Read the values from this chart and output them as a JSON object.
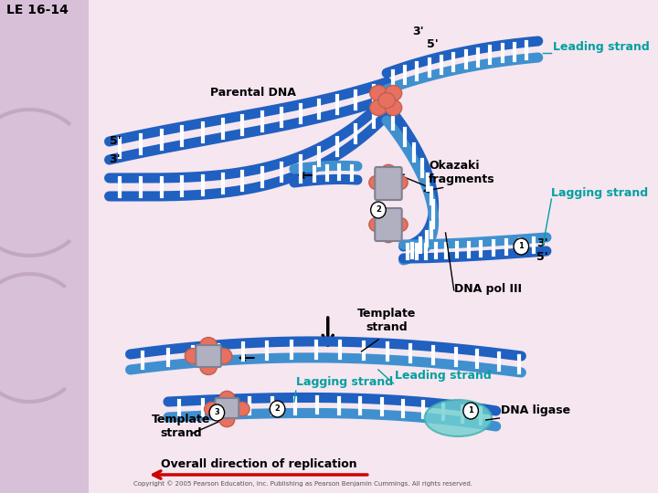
{
  "title": "LE 16-14",
  "bg_color": "#f5e6f0",
  "left_bg_color": "#e8d0e8",
  "labels": {
    "parental_dna": "Parental DNA",
    "leading_strand": "Leading strand",
    "lagging_strand": "Lagging strand",
    "okazaki_fragments": "Okazaki\nfragments",
    "dna_pol_iii": "DNA pol III",
    "template_strand": "Template\nstrand",
    "leading_strand2": "Leading strand",
    "lagging_strand2": "Lagging strand",
    "template_strand2": "Template\nstrand",
    "dna_ligase": "DNA ligase",
    "overall_direction": "Overall direction of replication",
    "copyright": "Copyright © 2005 Pearson Education, Inc. Publishing as Pearson Benjamin Cummings. All rights reserved.",
    "le_label": "LE 16-14"
  },
  "colors": {
    "dna_blue": "#2060c0",
    "dna_light_blue": "#4090d0",
    "teal": "#00a0a0",
    "orange_protein": "#e87060",
    "gray_protein": "#a0a0b0",
    "arrow_color": "#cc0000",
    "text_black": "#000000",
    "text_teal": "#00a0a0",
    "white": "#ffffff",
    "circle_bg": "#ffffff"
  }
}
